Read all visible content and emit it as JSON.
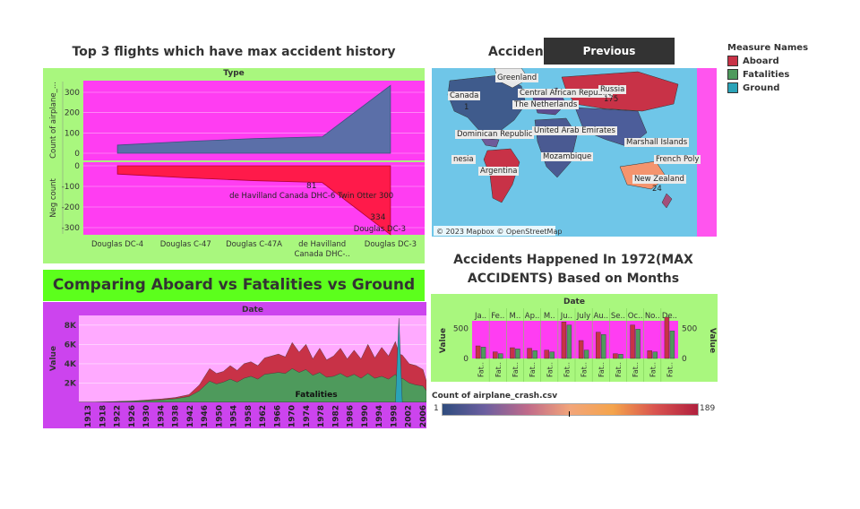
{
  "previous_label": "Previous",
  "legend": {
    "title": "Measure Names",
    "items": [
      {
        "label": "Aboard",
        "color": "#c83247"
      },
      {
        "label": "Fatalities",
        "color": "#4e9a5c"
      },
      {
        "label": "Ground",
        "color": "#2aa3b8"
      }
    ]
  },
  "map": {
    "title": "Accident",
    "copyright": "© 2023 Mapbox © OpenStreetMap",
    "labels": [
      {
        "text": "Greenland"
      },
      {
        "text": "Canada"
      },
      {
        "text": "1"
      },
      {
        "text": "Central African Republic"
      },
      {
        "text": "Russia"
      },
      {
        "text": "175"
      },
      {
        "text": "The Netherlands"
      },
      {
        "text": "Dominican Republic"
      },
      {
        "text": "United Arab Emirates"
      },
      {
        "text": "Marshall Islands"
      },
      {
        "text": "nesia"
      },
      {
        "text": "Mozambique"
      },
      {
        "text": "French Poly"
      },
      {
        "text": "Argentina"
      },
      {
        "text": "New Zealand"
      },
      {
        "text": "24"
      }
    ],
    "colorbar": {
      "title": "Count of airplane_crash.csv",
      "min_label": "1",
      "max_label": "189"
    }
  },
  "chart_data": [
    {
      "type": "area",
      "title": "Top 3 flights which have max accident history",
      "column_header": "Type",
      "ylabel_top": "Count of airplane_...",
      "ylabel_bottom": "Neg count",
      "categories": [
        "Douglas DC-4",
        "Douglas C-47",
        "Douglas C-47A",
        "de Havilland Canada DHC-..",
        "Douglas DC-3"
      ],
      "top_ticks": [
        "300",
        "200",
        "100",
        "0"
      ],
      "bottom_ticks": [
        "0",
        "-100",
        "-200",
        "-300"
      ],
      "series": [
        {
          "values": [
            40,
            58,
            72,
            81,
            334
          ],
          "color": "#5b6fa8"
        },
        {
          "values": [
            -40,
            -58,
            -72,
            -81,
            -334
          ],
          "color": "#ff1a4a"
        }
      ],
      "annotations": [
        {
          "value": "81",
          "label": "de Havilland Canada DHC-6 Twin Otter 300"
        },
        {
          "value": "334",
          "label": "Douglas DC-3"
        }
      ],
      "ylim": [
        0,
        340
      ]
    },
    {
      "type": "area",
      "title": "Comparing Aboard vs Fatalities vs Ground",
      "column_header": "Date",
      "ylabel": "Value",
      "y_ticks": [
        "8K",
        "6K",
        "4K",
        "2K"
      ],
      "x_ticks": [
        "1913",
        "1918",
        "1922",
        "1926",
        "1930",
        "1934",
        "1938",
        "1942",
        "1946",
        "1950",
        "1954",
        "1958",
        "1962",
        "1966",
        "1970",
        "1974",
        "1978",
        "1982",
        "1986",
        "1990",
        "1994",
        "1998",
        "2002",
        "2006"
      ],
      "x": [
        1908,
        1912,
        1916,
        1920,
        1924,
        1928,
        1932,
        1936,
        1940,
        1943,
        1946,
        1948,
        1950,
        1952,
        1954,
        1956,
        1958,
        1960,
        1962,
        1964,
        1966,
        1968,
        1970,
        1972,
        1974,
        1976,
        1978,
        1980,
        1982,
        1984,
        1986,
        1988,
        1990,
        1992,
        1994,
        1996,
        1998,
        2000,
        2001,
        2002,
        2004,
        2006,
        2008,
        2009
      ],
      "series": [
        {
          "name": "Aboard",
          "color": "#c83247",
          "values": [
            10,
            20,
            60,
            100,
            150,
            250,
            350,
            500,
            800,
            1800,
            3500,
            3000,
            3200,
            3800,
            3300,
            4000,
            4200,
            3800,
            4600,
            4800,
            5000,
            4700,
            6200,
            5200,
            6000,
            4500,
            5600,
            4400,
            4800,
            5600,
            4500,
            5400,
            4500,
            6000,
            4600,
            5700,
            4800,
            6300,
            5000,
            4900,
            4000,
            3800,
            3400,
            2200
          ]
        },
        {
          "name": "Fatalities",
          "color": "#4e9a5c",
          "values": [
            5,
            15,
            40,
            80,
            110,
            180,
            250,
            380,
            600,
            1200,
            2200,
            1900,
            2100,
            2400,
            2100,
            2500,
            2700,
            2400,
            2900,
            3000,
            3100,
            3000,
            3500,
            3100,
            3400,
            2800,
            3100,
            2600,
            2700,
            3000,
            2600,
            2900,
            2500,
            3000,
            2500,
            2700,
            2400,
            2900,
            2300,
            2500,
            2000,
            1800,
            1700,
            1200
          ]
        },
        {
          "name": "Ground",
          "color": "#2aa3b8",
          "values": [
            0,
            0,
            0,
            0,
            0,
            0,
            0,
            0,
            0,
            0,
            0,
            0,
            0,
            0,
            0,
            0,
            0,
            0,
            0,
            0,
            0,
            0,
            0,
            0,
            0,
            0,
            0,
            0,
            0,
            0,
            0,
            0,
            0,
            0,
            0,
            0,
            0,
            0,
            8700,
            0,
            0,
            0,
            0,
            0
          ]
        }
      ],
      "annotation": "Fatalities",
      "ylim": [
        0,
        9000
      ]
    },
    {
      "type": "bar",
      "title": "Accidents Happened In 1972(MAX ACCIDENTS) Based on Months",
      "column_header": "Date",
      "months": [
        "Ja..",
        "Fe..",
        "M..",
        "Ap..",
        "M..",
        "Ju..",
        "July",
        "Au..",
        "Se..",
        "Oc..",
        "No..",
        "De.."
      ],
      "ylabel": "Value",
      "y_ticks": [
        "500",
        "0"
      ],
      "bottom_labels": [
        "Fat..",
        "Fat..",
        "Fat..",
        "Fat..",
        "Fat..",
        "Fat..",
        "Fat..",
        "Fat..",
        "Fat..",
        "Fat..",
        "Fat..",
        "Fat.."
      ],
      "series": [
        {
          "name": "Aboard",
          "color": "#c83247",
          "values": [
            210,
            110,
            180,
            170,
            140,
            610,
            300,
            440,
            80,
            560,
            130,
            690
          ]
        },
        {
          "name": "Fatalities",
          "color": "#4e9a5c",
          "values": [
            190,
            80,
            160,
            130,
            110,
            560,
            140,
            400,
            70,
            490,
            110,
            460
          ]
        }
      ],
      "ylim": [
        0,
        750
      ]
    }
  ]
}
